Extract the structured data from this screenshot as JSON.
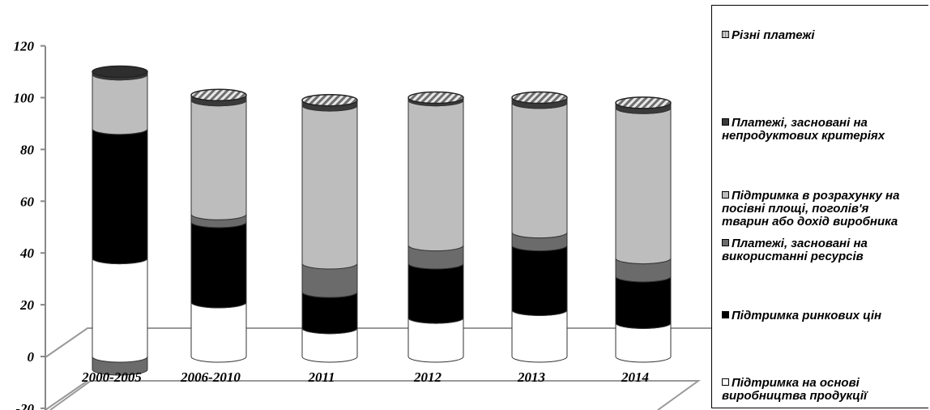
{
  "chart_data": {
    "type": "bar",
    "stacked": true,
    "style": "3d-cylinder",
    "categories": [
      "2000-2005",
      "2006-2010",
      "2011",
      "2012",
      "2013",
      "2014"
    ],
    "ylim": [
      -20,
      120
    ],
    "yticks": [
      "120",
      "100",
      "80",
      "60",
      "40",
      "20",
      "0",
      "-20"
    ],
    "legend_position": "right",
    "series": [
      {
        "name": "Підтримка на основі виробництва продукції",
        "color": "#ffffff",
        "values": [
          38,
          21,
          11,
          15,
          18,
          13
        ]
      },
      {
        "name": "Підтримка ринкових цін",
        "color": "#000000",
        "values": [
          50,
          31,
          14,
          21,
          25,
          18
        ]
      },
      {
        "name": "Платежі, засновані на використанні ресурсів",
        "color": "#6b6b6b",
        "values": [
          -5,
          3,
          11,
          7,
          5,
          7
        ]
      },
      {
        "name": "Підтримка в розрахунку на посівні площі, поголів'я тварин або дохід  виробника",
        "color": "#bdbdbd",
        "values": [
          21,
          44,
          61,
          56,
          50,
          58
        ]
      },
      {
        "name": "Платежі, засновані на непродуктових критеріях",
        "color": "#3a3a3a",
        "values": [
          1,
          2,
          2,
          1,
          2,
          2
        ]
      },
      {
        "name": "Різні платежі",
        "color": "#d8d8d8",
        "values": [
          0,
          0,
          0,
          0,
          0,
          0
        ]
      }
    ]
  },
  "legend": {
    "items": [
      {
        "line1": "Різні платежі",
        "line2": ""
      },
      {
        "line1": "Платежі, засновані на",
        "line2": "непродуктових критеріях"
      },
      {
        "line1": "Підтримка в розрахунку на",
        "line2": "посівні площі, поголів'я",
        "line3": "тварин або дохід  виробника"
      },
      {
        "line1": "Платежі, засновані на",
        "line2": "використанні ресурсів"
      },
      {
        "line1": "Підтримка ринкових цін",
        "line2": ""
      },
      {
        "line1": "Підтримка на основі",
        "line2": "виробництва продукції"
      }
    ]
  }
}
